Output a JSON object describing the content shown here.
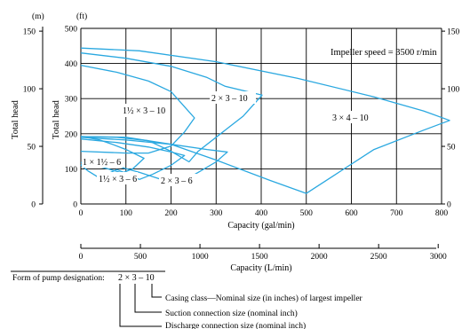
{
  "chart_data": {
    "type": "line",
    "title": "",
    "grid": true,
    "xlabel": "Capacity (gal/min)",
    "xlabel_secondary": "Capacity (L/min)",
    "ylabel": "Total head",
    "ylabel_secondary": "Total head",
    "y_unit_ft": "(ft)",
    "y_unit_m": "(m)",
    "xlim": [
      0,
      800
    ],
    "ylim": [
      0,
      500
    ],
    "x_ticks": [
      0,
      100,
      200,
      300,
      400,
      500,
      600,
      700,
      800
    ],
    "y_ticks_ft": [
      0,
      100,
      200,
      300,
      400,
      500
    ],
    "y_ticks_m": [
      0,
      50,
      100,
      150
    ],
    "x_ticks_lpm": [
      0,
      500,
      1000,
      1500,
      2000,
      2500,
      3000
    ],
    "annotation": "Impeller speed = 3500 r/min",
    "series": [
      {
        "name": "3 × 4 – 10",
        "points": [
          [
            0,
            444
          ],
          [
            130,
            436
          ],
          [
            300,
            405
          ],
          [
            480,
            358
          ],
          [
            650,
            305
          ],
          [
            760,
            265
          ],
          [
            818,
            238
          ],
          [
            760,
            210
          ],
          [
            650,
            155
          ],
          [
            560,
            80
          ],
          [
            500,
            30
          ],
          [
            420,
            67
          ],
          [
            300,
            125
          ],
          [
            200,
            170
          ],
          [
            100,
            190
          ],
          [
            0,
            192
          ]
        ]
      },
      {
        "name": "2 × 3 – 10",
        "points": [
          [
            0,
            430
          ],
          [
            100,
            415
          ],
          [
            200,
            392
          ],
          [
            280,
            360
          ],
          [
            320,
            335
          ],
          [
            402,
            310
          ],
          [
            360,
            250
          ],
          [
            310,
            200
          ],
          [
            260,
            150
          ],
          [
            240,
            120
          ],
          [
            200,
            150
          ],
          [
            150,
            180
          ],
          [
            80,
            190
          ],
          [
            0,
            192
          ]
        ]
      },
      {
        "name": "1½ × 3 – 10",
        "points": [
          [
            0,
            395
          ],
          [
            80,
            375
          ],
          [
            150,
            350
          ],
          [
            200,
            320
          ],
          [
            252,
            245
          ],
          [
            230,
            205
          ],
          [
            200,
            165
          ],
          [
            150,
            145
          ],
          [
            100,
            145
          ],
          [
            0,
            150
          ]
        ]
      },
      {
        "name": "2 × 3 – 6",
        "points": [
          [
            0,
            190
          ],
          [
            100,
            182
          ],
          [
            200,
            170
          ],
          [
            280,
            155
          ],
          [
            325,
            148
          ],
          [
            300,
            120
          ],
          [
            260,
            90
          ],
          [
            230,
            68
          ],
          [
            190,
            65
          ],
          [
            130,
            90
          ],
          [
            60,
            115
          ],
          [
            0,
            118
          ]
        ]
      },
      {
        "name": "1½ × 3 – 6",
        "points": [
          [
            0,
            185
          ],
          [
            80,
            175
          ],
          [
            150,
            162
          ],
          [
            200,
            148
          ],
          [
            230,
            138
          ],
          [
            200,
            110
          ],
          [
            160,
            85
          ],
          [
            130,
            70
          ],
          [
            100,
            85
          ],
          [
            60,
            100
          ],
          [
            30,
            110
          ],
          [
            0,
            112
          ]
        ]
      },
      {
        "name": "1 × 1½ – 6",
        "points": [
          [
            0,
            192
          ],
          [
            40,
            183
          ],
          [
            70,
            170
          ],
          [
            100,
            155
          ],
          [
            140,
            130
          ],
          [
            115,
            100
          ],
          [
            95,
            90
          ],
          [
            80,
            98
          ],
          [
            40,
            75
          ],
          [
            15,
            95
          ],
          [
            0,
            110
          ]
        ]
      }
    ],
    "curve_color": "#2aa8e0",
    "designation": {
      "label": "Form of pump designation:",
      "example": "2 × 3 – 10",
      "parts": [
        "Casing class—Nominal size (in inches) of largest impeller",
        "Suction connection size (nominal inch)",
        "Discharge connection size (nominal inch)"
      ]
    }
  }
}
